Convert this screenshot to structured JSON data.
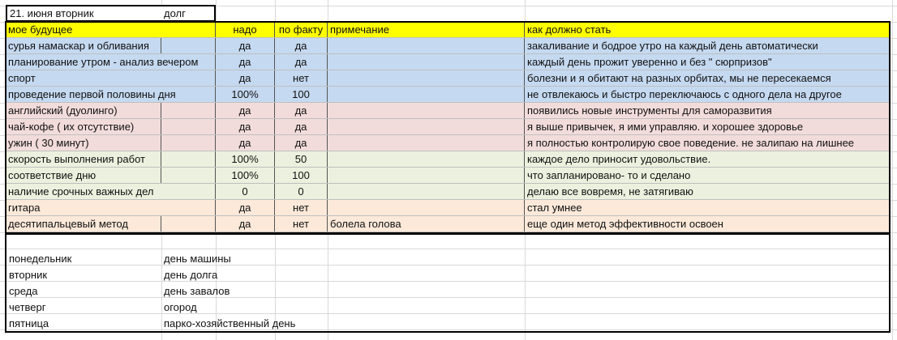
{
  "date_cell": {
    "date": "21. июня вторник",
    "theme": "долг"
  },
  "header": {
    "col_a": "мое будущее",
    "col_c": "надо",
    "col_d": "по факту",
    "col_e": "примечание",
    "col_f": "как должно стать",
    "color": "#ffff00"
  },
  "colors": {
    "blue": "#c5d9f1",
    "pink": "#f2dcdb",
    "green": "#ebf1de",
    "orange": "#fde9d9"
  },
  "rows": [
    {
      "habit": "сурья намаскар и обливания",
      "need": "да",
      "fact": "да",
      "note": "",
      "goal": "закаливание и бодрое утро на каждый день  автоматически",
      "group": "blue"
    },
    {
      "habit": "планирование утром - анализ вечером",
      "need": "да",
      "fact": "да",
      "note": "",
      "goal": "каждый день прожит уверенно и без  \" сюрпризов\"",
      "group": "blue"
    },
    {
      "habit": "спорт",
      "need": "да",
      "fact": "нет",
      "note": "",
      "goal": "болезни и я обитают на разных орбитах, мы не пересекаемся",
      "group": "blue"
    },
    {
      "habit": "проведение первой половины дня",
      "need": "100%",
      "fact": "100",
      "note": "",
      "goal": "не отвлекаюсь и быстро переключаюсь с одного дела на другое",
      "group": "blue"
    },
    {
      "habit": "английский (дуолинго)",
      "need": "да",
      "fact": "да",
      "note": "",
      "goal": "появились новые инструменты для саморазвития",
      "group": "pink"
    },
    {
      "habit": "чай-кофе ( их отсутствие)",
      "need": "да",
      "fact": "да",
      "note": "",
      "goal": "я выше привычек, я ими управляю. и хорошее здоровье",
      "group": "pink"
    },
    {
      "habit": "ужин  ( 30 минут)",
      "need": "да",
      "fact": "да",
      "note": "",
      "goal": "я полностью контролирую свое поведение. не залипаю на лишнее",
      "group": "pink"
    },
    {
      "habit": "скорость выполнения работ",
      "need": "100%",
      "fact": "50",
      "note": "",
      "goal": "каждое дело приносит удовольствие.",
      "group": "green"
    },
    {
      "habit": "соответствие  дню",
      "need": "100%",
      "fact": "100",
      "note": "",
      "goal": "что запланировано- то и сделано",
      "group": "green"
    },
    {
      "habit": "наличие срочных важных дел",
      "need": "0",
      "fact": "0",
      "note": "",
      "goal": "делаю все вовремя, не затягиваю",
      "group": "green"
    },
    {
      "habit": "гитара",
      "need": "да",
      "fact": "нет",
      "note": "",
      "goal": "стал умнее",
      "group": "orange"
    },
    {
      "habit": "десятипальцевый метод",
      "need": "да",
      "fact": "нет",
      "note": "болела голова",
      "goal": "еще один метод эффективности освоен",
      "group": "orange"
    }
  ],
  "days": [
    {
      "day": "понедельник",
      "theme": "день машины"
    },
    {
      "day": "вторник",
      "theme": "день долга"
    },
    {
      "day": "среда",
      "theme": "день завалов"
    },
    {
      "day": "четверг",
      "theme": "огород"
    },
    {
      "day": "пятница",
      "theme": "парко-хозяйственный день"
    }
  ]
}
